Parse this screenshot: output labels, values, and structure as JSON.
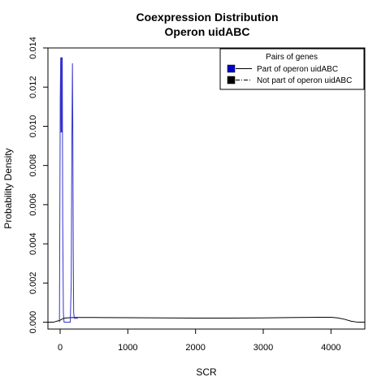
{
  "chart_data": {
    "type": "line",
    "title_line1": "Coexpression Distribution",
    "title_line2": "Operon uidABC",
    "xlabel": "SCR",
    "ylabel": "Probability Density",
    "xlim": [
      -180,
      4500
    ],
    "ylim": [
      -0.00035,
      0.014
    ],
    "x_ticks": [
      0,
      1000,
      2000,
      3000,
      4000
    ],
    "x_tick_labels": [
      "0",
      "1000",
      "2000",
      "3000",
      "4000"
    ],
    "y_ticks": [
      0.0,
      0.002,
      0.004,
      0.006,
      0.008,
      0.01,
      0.012,
      0.014
    ],
    "y_tick_labels": [
      "0.000",
      "0.002",
      "0.004",
      "0.006",
      "0.008",
      "0.010",
      "0.012",
      "0.014"
    ],
    "legend": {
      "title": "Pairs of genes",
      "position": "top-right",
      "entries": [
        {
          "label": "Part of operon uidABC",
          "color": "#0000cc",
          "line": "solid"
        },
        {
          "label": "Not part of operon uidABC",
          "color": "#000000",
          "line": "dashdot"
        }
      ]
    },
    "series": [
      {
        "name": "Part of operon uidABC",
        "color": "#3333cc",
        "x": [
          -10,
          2,
          8,
          14,
          20,
          26,
          32,
          38,
          48,
          58,
          70,
          90,
          120,
          150,
          164,
          174,
          182,
          188,
          194,
          200,
          210,
          230,
          260
        ],
        "y": [
          0.0,
          0.0115,
          0.0135,
          0.0097,
          0.0135,
          0.0097,
          0.0135,
          0.0052,
          0.0005,
          0.0,
          0.0,
          0.0,
          0.0,
          0.0,
          0.002,
          0.0095,
          0.0132,
          0.0095,
          0.0035,
          0.0005,
          0.0002,
          0.0002,
          0.0002
        ]
      },
      {
        "name": "Not part of operon uidABC",
        "color": "#000000",
        "x": [
          -180,
          -100,
          0,
          50,
          100,
          200,
          300,
          500,
          1000,
          1500,
          2000,
          2500,
          3000,
          3500,
          3800,
          4000,
          4100,
          4200,
          4300,
          4400,
          4500
        ],
        "y": [
          0.0,
          0.0,
          0.0001,
          0.0002,
          0.00022,
          0.00024,
          0.00024,
          0.00024,
          0.00023,
          0.00022,
          0.00021,
          0.00021,
          0.00022,
          0.00024,
          0.00025,
          0.00025,
          0.00022,
          0.00015,
          5e-05,
          0.0,
          0.0
        ]
      }
    ]
  }
}
